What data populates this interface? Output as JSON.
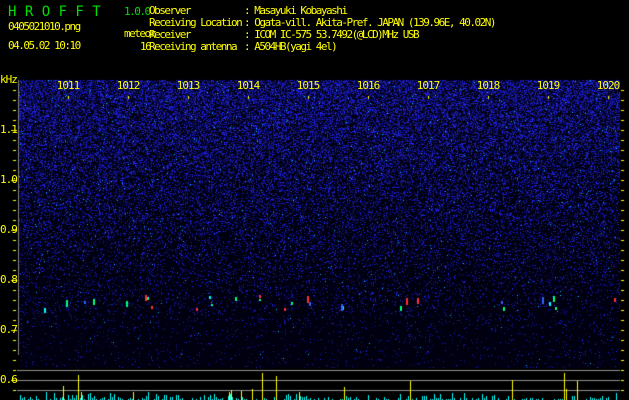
{
  "app": {
    "name": "H R O F F T",
    "version": "1.0.0"
  },
  "file": {
    "name": "0405021010.png",
    "datetime": "04.05.02 10:10"
  },
  "meteor": {
    "label": "meteor",
    "count": "16"
  },
  "info": [
    {
      "label": "Observer",
      "value": ": Masayuki Kobayashi"
    },
    {
      "label": "Receiving Location",
      "value": ": Ogata-vill. Akita-Pref. JAPAN (139.96E, 40.02N)"
    },
    {
      "label": "Receiver",
      "value": ": ICOM IC-575 53.7492(@LCD)MHz USB"
    },
    {
      "label": "Receiving antenna",
      "value": ": A504HB(yagi 4el)"
    }
  ],
  "spectrogram": {
    "y_unit": "kHz",
    "y_ticks": [
      "1.1",
      "1.0",
      "0.9",
      "0.8",
      "0.7",
      "0.6"
    ],
    "x_ticks": [
      "1011",
      "1012",
      "1013",
      "1014",
      "1015",
      "1016",
      "1017",
      "1018",
      "1019",
      "1020"
    ],
    "colors": {
      "text": "#ffff00",
      "title": "#00e000",
      "noise": "#2020ff",
      "bars": "#00ffff",
      "peak_bars": "#ffff00",
      "grid": "#808080"
    }
  }
}
